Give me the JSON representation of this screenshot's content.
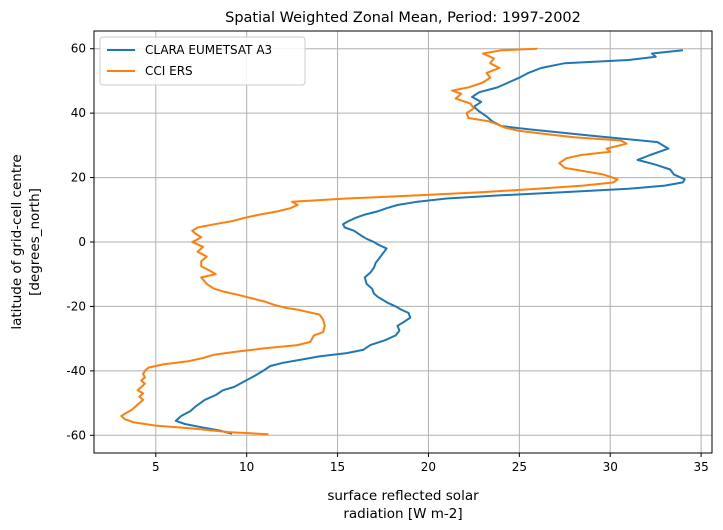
{
  "chart_data": {
    "type": "line",
    "title": "Spatial Weighted Zonal Mean, Period: 1997-2002",
    "xlabel": [
      "surface reflected solar",
      "radiation [W m-2]"
    ],
    "ylabel": [
      "latitude of grid-cell centre",
      "[degrees_north]"
    ],
    "xlim": [
      1.6,
      35.6
    ],
    "ylim": [
      -65.5,
      65.5
    ],
    "xticks": [
      5,
      10,
      15,
      20,
      25,
      30,
      35
    ],
    "yticks": [
      -60,
      -40,
      -20,
      0,
      20,
      40,
      60
    ],
    "grid": true,
    "legend_position": "top-left",
    "series": [
      {
        "name": "CLARA EUMETSAT A3",
        "color": "#1f77b4",
        "points": [
          [
            9.2,
            -59.5
          ],
          [
            8.5,
            -58.5
          ],
          [
            7.5,
            -57.5
          ],
          [
            6.6,
            -56.5
          ],
          [
            6.1,
            -55.5
          ],
          [
            6.4,
            -54
          ],
          [
            6.9,
            -52.5
          ],
          [
            7.2,
            -51
          ],
          [
            7.7,
            -49
          ],
          [
            8.3,
            -47.5
          ],
          [
            8.7,
            -46
          ],
          [
            9.3,
            -45
          ],
          [
            9.8,
            -43.5
          ],
          [
            10.3,
            -42
          ],
          [
            10.6,
            -41
          ],
          [
            10.9,
            -40
          ],
          [
            11.3,
            -38.5
          ],
          [
            12.0,
            -37.5
          ],
          [
            13.0,
            -36.5
          ],
          [
            14.0,
            -35.5
          ],
          [
            15.5,
            -34.5
          ],
          [
            16.4,
            -33.5
          ],
          [
            16.8,
            -32
          ],
          [
            17.6,
            -30.5
          ],
          [
            18.2,
            -29
          ],
          [
            18.4,
            -27.5
          ],
          [
            18.3,
            -26
          ],
          [
            18.6,
            -25
          ],
          [
            19.0,
            -23.5
          ],
          [
            18.9,
            -22
          ],
          [
            18.5,
            -21
          ],
          [
            18.2,
            -20
          ],
          [
            17.8,
            -19
          ],
          [
            17.5,
            -18
          ],
          [
            17.2,
            -17
          ],
          [
            17.0,
            -16
          ],
          [
            16.9,
            -14.5
          ],
          [
            16.6,
            -13
          ],
          [
            16.5,
            -11
          ],
          [
            16.8,
            -9.5
          ],
          [
            17.0,
            -8
          ],
          [
            17.1,
            -6.5
          ],
          [
            17.3,
            -5
          ],
          [
            17.5,
            -3.5
          ],
          [
            17.7,
            -2
          ],
          [
            17.3,
            -1
          ],
          [
            17.0,
            0
          ],
          [
            16.6,
            1
          ],
          [
            16.3,
            2
          ],
          [
            15.9,
            3.5
          ],
          [
            15.4,
            4.5
          ],
          [
            15.3,
            5.5
          ],
          [
            15.6,
            6.5
          ],
          [
            16.0,
            7.5
          ],
          [
            16.5,
            8.5
          ],
          [
            17.2,
            9.5
          ],
          [
            17.7,
            10.5
          ],
          [
            18.3,
            11.5
          ],
          [
            19.4,
            12.5
          ],
          [
            21.0,
            13.5
          ],
          [
            24.0,
            14.5
          ],
          [
            27.5,
            15.5
          ],
          [
            31.0,
            16.5
          ],
          [
            33.0,
            17.5
          ],
          [
            34.0,
            18.5
          ],
          [
            34.1,
            19.5
          ],
          [
            33.5,
            21
          ],
          [
            33.3,
            22.5
          ],
          [
            32.5,
            24
          ],
          [
            31.5,
            25.5
          ],
          [
            32.2,
            27
          ],
          [
            33.2,
            29
          ],
          [
            32.6,
            31
          ],
          [
            29.0,
            33
          ],
          [
            25.5,
            35
          ],
          [
            24.0,
            36
          ],
          [
            23.5,
            37.5
          ],
          [
            23.2,
            39
          ],
          [
            22.8,
            40.5
          ],
          [
            22.5,
            42
          ],
          [
            22.9,
            43.5
          ],
          [
            22.4,
            45
          ],
          [
            22.8,
            46.5
          ],
          [
            23.8,
            48
          ],
          [
            24.4,
            49.5
          ],
          [
            25.0,
            51
          ],
          [
            25.5,
            52.5
          ],
          [
            26.2,
            54
          ],
          [
            27.5,
            55.5
          ],
          [
            31.0,
            56.5
          ],
          [
            32.5,
            57.5
          ],
          [
            32.3,
            58.5
          ],
          [
            34.0,
            59.5
          ]
        ]
      },
      {
        "name": "CCI ERS",
        "color": "#ff7f0e",
        "points": [
          [
            11.2,
            -59.7
          ],
          [
            9.0,
            -59
          ],
          [
            7.2,
            -58
          ],
          [
            5.0,
            -57
          ],
          [
            3.8,
            -56
          ],
          [
            3.3,
            -55
          ],
          [
            3.1,
            -54
          ],
          [
            3.4,
            -53
          ],
          [
            3.7,
            -52
          ],
          [
            3.9,
            -51
          ],
          [
            4.1,
            -50
          ],
          [
            4.3,
            -49
          ],
          [
            4.1,
            -48
          ],
          [
            4.3,
            -47
          ],
          [
            4.0,
            -46
          ],
          [
            4.2,
            -45
          ],
          [
            4.4,
            -44
          ],
          [
            4.2,
            -43
          ],
          [
            4.4,
            -42
          ],
          [
            4.3,
            -41
          ],
          [
            4.4,
            -40
          ],
          [
            4.6,
            -39
          ],
          [
            5.4,
            -38
          ],
          [
            6.8,
            -37
          ],
          [
            7.6,
            -36
          ],
          [
            8.2,
            -35
          ],
          [
            9.5,
            -34
          ],
          [
            11.0,
            -33
          ],
          [
            12.8,
            -32
          ],
          [
            13.5,
            -31
          ],
          [
            13.6,
            -30
          ],
          [
            13.7,
            -29
          ],
          [
            14.2,
            -28
          ],
          [
            14.3,
            -26
          ],
          [
            14.2,
            -24
          ],
          [
            14.0,
            -22.5
          ],
          [
            13.2,
            -21.5
          ],
          [
            12.8,
            -21
          ],
          [
            12.2,
            -20.5
          ],
          [
            11.5,
            -19.5
          ],
          [
            11.0,
            -18.5
          ],
          [
            10.3,
            -17.5
          ],
          [
            9.6,
            -16.5
          ],
          [
            8.8,
            -15.5
          ],
          [
            8.2,
            -14.5
          ],
          [
            7.8,
            -13
          ],
          [
            7.5,
            -11
          ],
          [
            8.3,
            -10
          ],
          [
            8.0,
            -9
          ],
          [
            7.5,
            -7.5
          ],
          [
            7.5,
            -6
          ],
          [
            7.8,
            -4.5
          ],
          [
            7.3,
            -3
          ],
          [
            7.6,
            -1.5
          ],
          [
            7.0,
            0
          ],
          [
            7.3,
            0.8
          ],
          [
            7.5,
            1.5
          ],
          [
            7.2,
            2.5
          ],
          [
            7.0,
            3.5
          ],
          [
            7.3,
            4.5
          ],
          [
            8.2,
            5.5
          ],
          [
            9.2,
            6.5
          ],
          [
            9.9,
            7.5
          ],
          [
            10.7,
            8.5
          ],
          [
            11.7,
            9.5
          ],
          [
            12.4,
            10.5
          ],
          [
            12.8,
            11.5
          ],
          [
            12.5,
            12.5
          ],
          [
            15.5,
            13.5
          ],
          [
            19.5,
            14.5
          ],
          [
            23.0,
            15.5
          ],
          [
            26.0,
            16.5
          ],
          [
            28.5,
            17.5
          ],
          [
            30.2,
            18.5
          ],
          [
            30.4,
            19.5
          ],
          [
            29.6,
            21
          ],
          [
            27.5,
            23
          ],
          [
            27.2,
            24.5
          ],
          [
            27.6,
            26
          ],
          [
            28.4,
            27
          ],
          [
            30.0,
            28
          ],
          [
            29.8,
            29
          ],
          [
            30.9,
            30.5
          ],
          [
            30.6,
            31.5
          ],
          [
            28.0,
            32.5
          ],
          [
            26.5,
            33.5
          ],
          [
            25.0,
            34.5
          ],
          [
            24.2,
            35.5
          ],
          [
            23.8,
            36.5
          ],
          [
            23.3,
            37.5
          ],
          [
            22.2,
            38.5
          ],
          [
            22.1,
            40
          ],
          [
            22.5,
            41.5
          ],
          [
            22.3,
            43
          ],
          [
            21.5,
            44.5
          ],
          [
            21.8,
            46
          ],
          [
            21.3,
            47
          ],
          [
            22.2,
            48
          ],
          [
            23.0,
            49.5
          ],
          [
            23.4,
            51
          ],
          [
            23.2,
            52.5
          ],
          [
            23.9,
            54
          ],
          [
            23.4,
            55.5
          ],
          [
            23.6,
            57
          ],
          [
            23.0,
            58.5
          ],
          [
            24.0,
            59.5
          ],
          [
            26.0,
            60
          ]
        ]
      }
    ]
  }
}
